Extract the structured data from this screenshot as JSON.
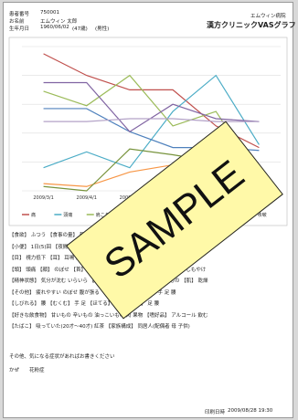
{
  "header": {
    "patient_id_label": "患者番号",
    "patient_id": "750001",
    "name_label": "お名前",
    "name": "エムウィン 太郎",
    "birth_label": "生年月日",
    "birth": "1960/06/02",
    "age": "(47歳)",
    "sex": "(男性)",
    "hospital": "エムウィン病院",
    "title": "漢方クリニックVASグラフ"
  },
  "chart_data": {
    "type": "line",
    "categories": [
      "2009/3/1",
      "2009/4/1",
      "2009/5/1",
      "2009/6/1",
      "2009/7/1",
      "2009/8/1"
    ],
    "ylim": [
      0,
      100
    ],
    "yticks": [
      0,
      20,
      40,
      60,
      80,
      100
    ],
    "grid": true,
    "series": [
      {
        "name": "痛",
        "color": "#c0504d",
        "values": [
          95,
          80,
          70,
          70,
          45,
          30
        ]
      },
      {
        "name": "頭痛",
        "color": "#4bacc6",
        "values": [
          16,
          27,
          16,
          55,
          80,
          32
        ]
      },
      {
        "name": "肩こり",
        "color": "#9bbb59",
        "values": [
          69,
          59,
          80,
          45,
          55,
          10
        ]
      },
      {
        "name": "腰痛",
        "color": "#4f81bd",
        "values": [
          57,
          57,
          41,
          30,
          30,
          28
        ]
      },
      {
        "name": "疲れ",
        "color": "#8064a2",
        "values": [
          75,
          75,
          41,
          60,
          50,
          48
        ]
      },
      {
        "name": "冷え",
        "color": "#f79646",
        "values": [
          5,
          3,
          13,
          18,
          20,
          15
        ]
      },
      {
        "name": "胸がつかえる",
        "color": "#77933c",
        "values": [
          3,
          0,
          29,
          25,
          20,
          13
        ]
      },
      {
        "name": "咳嗽",
        "color": "#b3a2c7",
        "values": [
          48,
          48,
          50,
          50,
          48,
          48
        ]
      }
    ]
  },
  "form": {
    "rows": [
      "【食欲】 ふつう 【食事の量】 普通 【食べ方】 早い 【睡眠】 途中で目が覚める",
      "【小便】 1日(5)回 【夜間尿】 (1)回 【大便】 1日(1)回 普通 【汗】 汗をかきやすい",
      "【目】 視力低下 【耳】 耳鳴り 【鼻】 鼻水 【のど】 痛み 歯ぐき 【口唇】 口が渇く",
      "【頭】 頭痛 【顔】 のぼせ 【首】 肩こり 【胸】 動悸 胸がつかえる 【手足】 しもやけ",
      "【精神状態】 気分が沈む いらいら 【皮膚】 かゆみ 【食べ物】 冷たいもの 【肌】 乾燥",
      "【その他】 疲れやすい のぼせ 腹が張る 【こる】 首 肩 【痛む】 手 足 腰",
      "【しびれる】 腰 【むくむ】 手 足 【ほてる】 顔 【冷える】 足 腰",
      "【好きな飲食物】 甘いもの 辛いもの 油っこいもの 肉 果物 【嗜好品】 アルコール 飲む",
      "【たばこ】 吸っていた(20才〜40才) 紅茶 【家族構成】 同居人(配偶者 母 子供)"
    ],
    "note_label": "その他、気になる症状があればお書きください",
    "note": "かぜ　　花粉症"
  },
  "watermark": "SAMPLE",
  "footer": {
    "print_label": "印刷日時",
    "print_date": "2009/08/28 19:30"
  }
}
